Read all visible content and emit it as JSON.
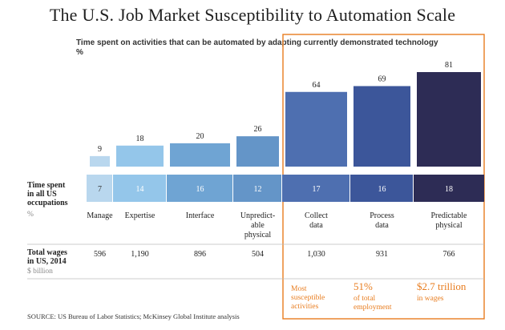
{
  "title": "The U.S. Job Market Susceptibility to Automation Scale",
  "chart_data": {
    "type": "bar",
    "title": "Time spent on activities that can be automated by adapting currently demonstrated technology",
    "unit": "%",
    "categories": [
      "Manage",
      "Expertise",
      "Interface",
      "Unpredict-able physical",
      "Collect data",
      "Process data",
      "Predictable physical"
    ],
    "category_lines": [
      [
        "Manage"
      ],
      [
        "Expertise"
      ],
      [
        "Interface"
      ],
      [
        "Unpredict-",
        "able",
        "physical"
      ],
      [
        "Collect",
        "data"
      ],
      [
        "Process",
        "data"
      ],
      [
        "Predictable",
        "physical"
      ]
    ],
    "series": [
      {
        "name": "Time spent on activities that can be automated",
        "values": [
          9,
          18,
          20,
          26,
          64,
          69,
          81
        ]
      }
    ],
    "ylim": [
      0,
      81
    ],
    "time_spent": {
      "label_lines": [
        "Time spent",
        "in all US",
        "occupations"
      ],
      "unit": "%",
      "values": [
        7,
        14,
        16,
        12,
        17,
        16,
        18
      ]
    },
    "total_wages": {
      "label_lines": [
        "Total wages",
        "in US, 2014"
      ],
      "unit": "$ billion",
      "values": [
        "596",
        "1,190",
        "896",
        "504",
        "1,030",
        "931",
        "766"
      ]
    },
    "bar_colors": [
      "#b9d7ee",
      "#94c6ea",
      "#6fa4d3",
      "#6495c8",
      "#4e6fb0",
      "#3c569a",
      "#2d2c55"
    ],
    "highlight_color": "#e87c1e",
    "callouts": [
      {
        "big": "",
        "lines": [
          "Most",
          "susceptible",
          "activities"
        ]
      },
      {
        "big": "51%",
        "lines": [
          "of total",
          "employment"
        ]
      },
      {
        "big": "$2.7 trillion",
        "lines": [
          "in wages"
        ]
      }
    ]
  },
  "source": "SOURCE:  US Bureau of Labor Statistics; McKinsey Global Institute analysis"
}
